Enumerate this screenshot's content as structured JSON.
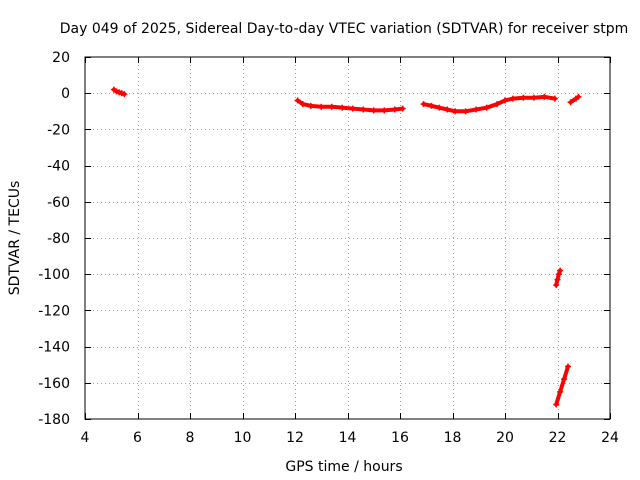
{
  "chart_data": {
    "type": "scatter",
    "title": "Day 049 of 2025, Sidereal Day-to-day VTEC variation (SDTVAR) for receiver stpm",
    "xlabel": "GPS time / hours",
    "ylabel": "SDTVAR / TECUs",
    "xlim": [
      4,
      24
    ],
    "ylim": [
      -180,
      20
    ],
    "xticks": [
      4,
      6,
      8,
      10,
      12,
      14,
      16,
      18,
      20,
      22,
      24
    ],
    "yticks": [
      20,
      0,
      -20,
      -40,
      -60,
      -80,
      -100,
      -120,
      -140,
      -160,
      -180
    ],
    "grid": true,
    "series": [
      {
        "name": "SDTVAR",
        "color": "#ff0000",
        "x": [
          5.1,
          5.2,
          5.3,
          5.4,
          5.5,
          12.1,
          12.3,
          12.6,
          13.0,
          13.4,
          13.8,
          14.2,
          14.6,
          15.0,
          15.4,
          15.8,
          16.1,
          16.9,
          17.2,
          17.5,
          17.8,
          18.1,
          18.5,
          18.9,
          19.3,
          19.7,
          20.0,
          20.3,
          20.7,
          21.1,
          21.5,
          21.9,
          22.5,
          22.7,
          22.8,
          21.95,
          22.0,
          22.05,
          22.1,
          21.95,
          22.1,
          22.25,
          22.4
        ],
        "y": [
          2,
          1,
          0.5,
          0,
          -0.5,
          -4,
          -6,
          -7,
          -7.5,
          -7.5,
          -8,
          -8.5,
          -9,
          -9.5,
          -9.5,
          -9,
          -8.5,
          -6,
          -7,
          -8,
          -9,
          -10,
          -10,
          -9,
          -8,
          -6,
          -4,
          -3,
          -2.5,
          -2.5,
          -2,
          -3,
          -5,
          -3,
          -2,
          -106,
          -103,
          -100,
          -98,
          -172,
          -165,
          -158,
          -151
        ]
      }
    ]
  }
}
